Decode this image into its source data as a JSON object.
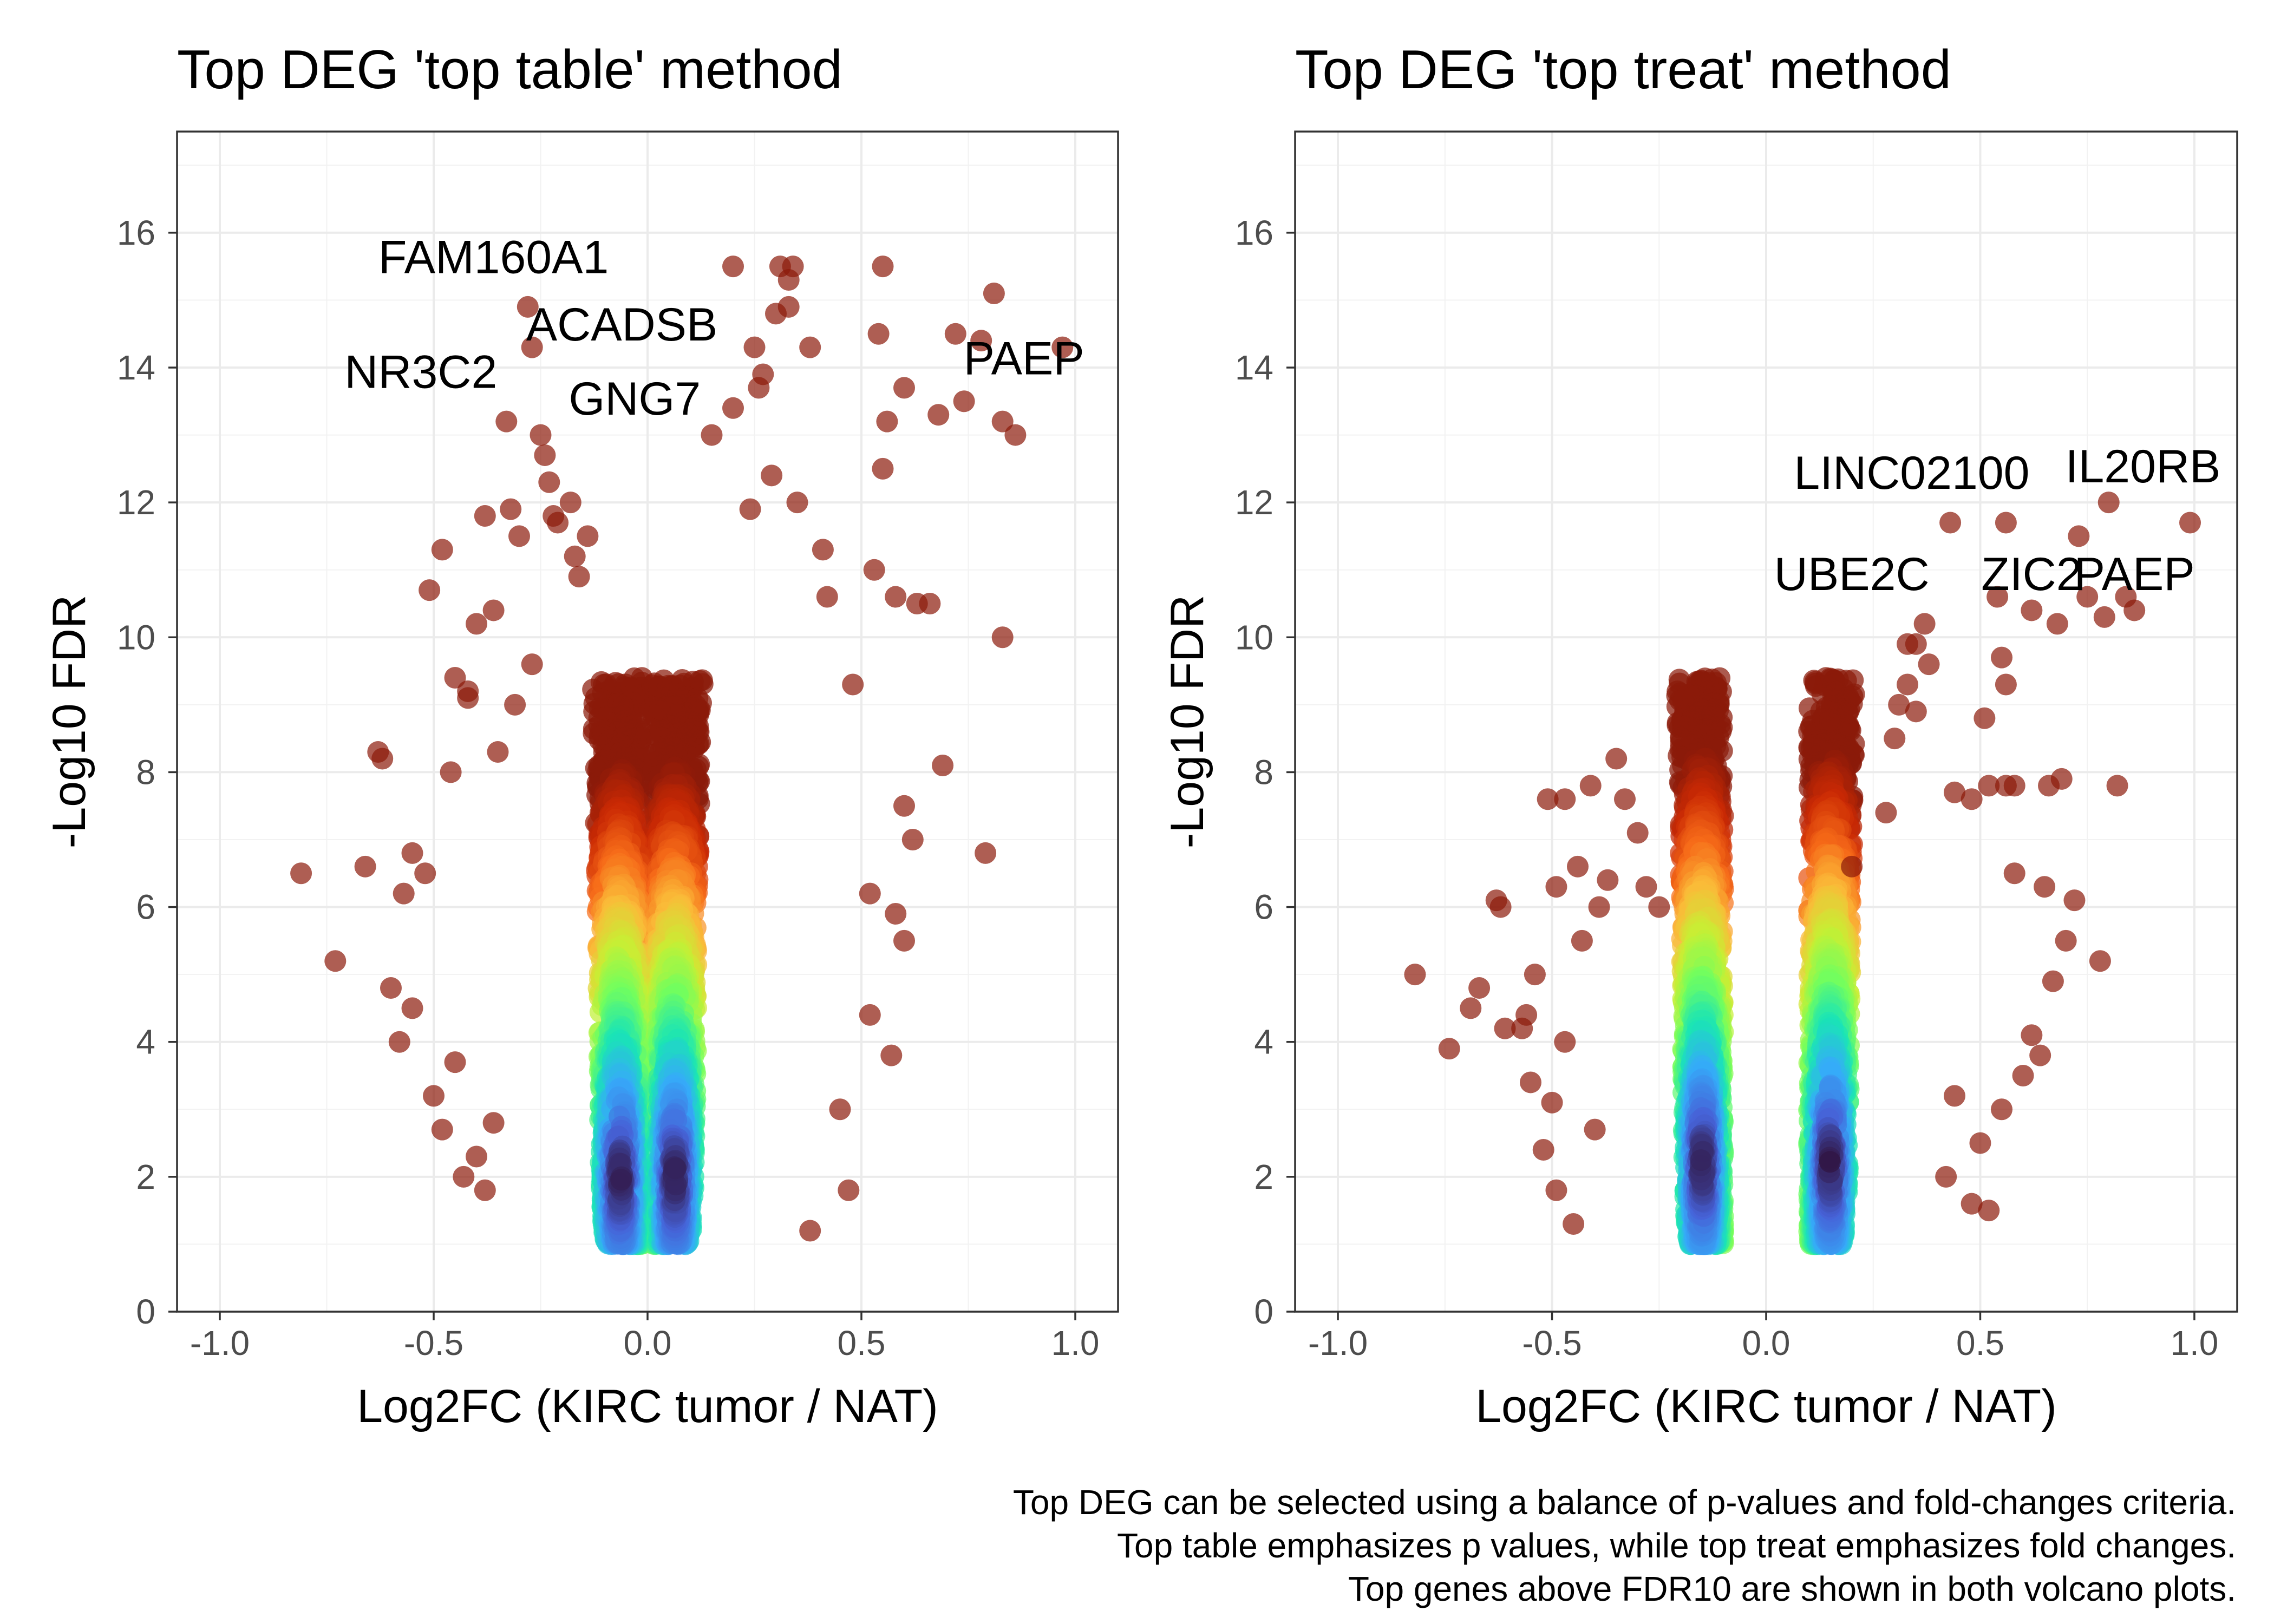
{
  "caption": [
    "Top DEG can be selected using a balance of p-values and fold-changes criteria.",
    "Top table emphasizes p values, while top treat emphasizes fold changes.",
    "Top genes above FDR10 are shown in both volcano plots."
  ],
  "colors": {
    "high_significance": "#8b1a0a",
    "gradient": [
      "#30123b",
      "#4662d7",
      "#36aaf9",
      "#1ae4b6",
      "#72fe5e",
      "#c7ef34",
      "#fabb39",
      "#f66b19",
      "#ca2a04",
      "#8b1a0a"
    ]
  },
  "chart_data": [
    {
      "type": "scatter",
      "title": "Top DEG 'top table' method",
      "xlabel": "Log2FC (KIRC tumor / NAT)",
      "ylabel": "-Log10 FDR",
      "xlim": [
        -1.1,
        1.1
      ],
      "ylim": [
        0,
        17.5
      ],
      "xticks": [
        -1.0,
        -0.5,
        0.0,
        0.5,
        1.0
      ],
      "xtick_labels": [
        "-1.0",
        "-0.5",
        "0.0",
        "0.5",
        "1.0"
      ],
      "yticks": [
        0,
        2,
        4,
        6,
        8,
        10,
        12,
        14,
        16
      ],
      "ytick_labels": [
        "0",
        "2",
        "4",
        "6",
        "8",
        "10",
        "12",
        "14",
        "16"
      ],
      "grid": true,
      "density": {
        "x_center": 0.0,
        "x_gap": 0.01,
        "x_spread": 0.12,
        "y_min": 1.0,
        "y_peak": 2.0
      },
      "points": [
        [
          -0.81,
          6.5
        ],
        [
          -0.73,
          5.2
        ],
        [
          -0.66,
          6.6
        ],
        [
          -0.63,
          8.3
        ],
        [
          -0.62,
          8.2
        ],
        [
          -0.6,
          4.8
        ],
        [
          -0.57,
          6.2
        ],
        [
          -0.55,
          6.8
        ],
        [
          -0.52,
          6.5
        ],
        [
          -0.51,
          10.7
        ],
        [
          -0.48,
          11.3
        ],
        [
          -0.45,
          9.4
        ],
        [
          -0.42,
          9.2
        ],
        [
          -0.4,
          10.2
        ],
        [
          -0.38,
          11.8
        ],
        [
          -0.36,
          10.4
        ],
        [
          -0.33,
          13.2
        ],
        [
          -0.32,
          11.9
        ],
        [
          -0.3,
          11.5
        ],
        [
          -0.28,
          14.9
        ],
        [
          -0.27,
          14.3
        ],
        [
          -0.25,
          13.0
        ],
        [
          -0.24,
          12.7
        ],
        [
          -0.23,
          12.3
        ],
        [
          -0.22,
          11.8
        ],
        [
          -0.21,
          11.7
        ],
        [
          -0.18,
          12.0
        ],
        [
          -0.17,
          11.2
        ],
        [
          -0.14,
          11.5
        ],
        [
          -0.16,
          10.9
        ],
        [
          -0.42,
          9.1
        ],
        [
          -0.46,
          8.0
        ],
        [
          -0.5,
          3.2
        ],
        [
          -0.48,
          2.7
        ],
        [
          -0.43,
          2.0
        ],
        [
          -0.38,
          1.8
        ],
        [
          -0.55,
          4.5
        ],
        [
          -0.35,
          8.3
        ],
        [
          -0.31,
          9.0
        ],
        [
          -0.45,
          3.7
        ],
        [
          -0.4,
          2.3
        ],
        [
          -0.58,
          4.0
        ],
        [
          -0.36,
          2.8
        ],
        [
          -0.27,
          9.6
        ],
        [
          0.2,
          15.5
        ],
        [
          0.31,
          15.5
        ],
        [
          0.34,
          15.5
        ],
        [
          0.33,
          15.3
        ],
        [
          0.55,
          15.5
        ],
        [
          0.81,
          15.1
        ],
        [
          0.78,
          14.4
        ],
        [
          0.72,
          14.5
        ],
        [
          0.54,
          14.5
        ],
        [
          0.6,
          13.7
        ],
        [
          0.68,
          13.3
        ],
        [
          0.74,
          13.5
        ],
        [
          0.83,
          13.2
        ],
        [
          0.86,
          13.0
        ],
        [
          0.97,
          14.3
        ],
        [
          0.25,
          14.3
        ],
        [
          0.3,
          14.8
        ],
        [
          0.33,
          14.9
        ],
        [
          0.38,
          14.3
        ],
        [
          0.27,
          13.9
        ],
        [
          0.26,
          13.7
        ],
        [
          0.2,
          13.4
        ],
        [
          0.15,
          13.0
        ],
        [
          0.56,
          13.2
        ],
        [
          0.55,
          12.5
        ],
        [
          0.41,
          11.3
        ],
        [
          0.53,
          11.0
        ],
        [
          0.58,
          10.6
        ],
        [
          0.63,
          10.5
        ],
        [
          0.66,
          10.5
        ],
        [
          0.83,
          10.0
        ],
        [
          0.48,
          9.3
        ],
        [
          0.69,
          8.1
        ],
        [
          0.62,
          7.0
        ],
        [
          0.79,
          6.8
        ],
        [
          0.6,
          5.5
        ],
        [
          0.52,
          4.4
        ],
        [
          0.57,
          3.8
        ],
        [
          0.47,
          1.8
        ],
        [
          0.38,
          1.2
        ],
        [
          0.52,
          6.2
        ],
        [
          0.6,
          7.5
        ],
        [
          0.42,
          10.6
        ],
        [
          0.35,
          12.0
        ],
        [
          0.29,
          12.4
        ],
        [
          0.24,
          11.9
        ],
        [
          0.45,
          3.0
        ],
        [
          0.58,
          5.9
        ]
      ],
      "annotations": [
        {
          "label": "FAM160A1",
          "x": -0.36,
          "y": 15.4
        },
        {
          "label": "ACADSB",
          "x": -0.06,
          "y": 14.4
        },
        {
          "label": "NR3C2",
          "x": -0.53,
          "y": 13.7
        },
        {
          "label": "GNG7",
          "x": -0.03,
          "y": 13.3
        },
        {
          "label": "PAEP",
          "x": 0.88,
          "y": 13.9
        }
      ]
    },
    {
      "type": "scatter",
      "title": "Top DEG 'top treat' method",
      "xlabel": "Log2FC (KIRC tumor / NAT)",
      "ylabel": "-Log10 FDR",
      "xlim": [
        -1.1,
        1.1
      ],
      "ylim": [
        0,
        17.5
      ],
      "xticks": [
        -1.0,
        -0.5,
        0.0,
        0.5,
        1.0
      ],
      "xtick_labels": [
        "-1.0",
        "-0.5",
        "0.0",
        "0.5",
        "1.0"
      ],
      "yticks": [
        0,
        2,
        4,
        6,
        8,
        10,
        12,
        14,
        16
      ],
      "ytick_labels": [
        "0",
        "2",
        "4",
        "6",
        "8",
        "10",
        "12",
        "14",
        "16"
      ],
      "grid": true,
      "density": {
        "x_center": 0.0,
        "x_gap": 0.1,
        "x_spread": 0.11,
        "y_min": 1.0,
        "y_peak": 2.2
      },
      "points": [
        [
          -0.82,
          5.0
        ],
        [
          -0.74,
          3.9
        ],
        [
          -0.69,
          4.5
        ],
        [
          -0.67,
          4.8
        ],
        [
          -0.63,
          6.1
        ],
        [
          -0.62,
          6.0
        ],
        [
          -0.61,
          4.2
        ],
        [
          -0.57,
          4.2
        ],
        [
          -0.56,
          4.4
        ],
        [
          -0.54,
          5.0
        ],
        [
          -0.51,
          7.6
        ],
        [
          -0.49,
          6.3
        ],
        [
          -0.47,
          7.6
        ],
        [
          -0.41,
          7.8
        ],
        [
          -0.39,
          6.0
        ],
        [
          -0.35,
          8.2
        ],
        [
          -0.33,
          7.6
        ],
        [
          -0.3,
          7.1
        ],
        [
          -0.37,
          6.4
        ],
        [
          -0.43,
          5.5
        ],
        [
          -0.5,
          3.1
        ],
        [
          -0.52,
          2.4
        ],
        [
          -0.49,
          1.8
        ],
        [
          -0.45,
          1.3
        ],
        [
          -0.4,
          2.7
        ],
        [
          -0.47,
          4.0
        ],
        [
          -0.55,
          3.4
        ],
        [
          -0.28,
          6.3
        ],
        [
          -0.25,
          6.0
        ],
        [
          -0.44,
          6.6
        ],
        [
          0.43,
          11.7
        ],
        [
          0.56,
          11.7
        ],
        [
          0.73,
          11.5
        ],
        [
          0.8,
          12.0
        ],
        [
          0.99,
          11.7
        ],
        [
          0.37,
          10.2
        ],
        [
          0.33,
          9.9
        ],
        [
          0.35,
          9.9
        ],
        [
          0.38,
          9.6
        ],
        [
          0.33,
          9.3
        ],
        [
          0.31,
          9.0
        ],
        [
          0.35,
          8.9
        ],
        [
          0.54,
          10.6
        ],
        [
          0.62,
          10.4
        ],
        [
          0.68,
          10.2
        ],
        [
          0.75,
          10.6
        ],
        [
          0.79,
          10.3
        ],
        [
          0.84,
          10.6
        ],
        [
          0.86,
          10.4
        ],
        [
          0.55,
          9.7
        ],
        [
          0.56,
          9.3
        ],
        [
          0.51,
          8.8
        ],
        [
          0.52,
          7.8
        ],
        [
          0.56,
          7.8
        ],
        [
          0.58,
          7.8
        ],
        [
          0.66,
          7.8
        ],
        [
          0.82,
          7.8
        ],
        [
          0.69,
          7.9
        ],
        [
          0.3,
          8.5
        ],
        [
          0.28,
          7.4
        ],
        [
          0.44,
          7.7
        ],
        [
          0.48,
          7.6
        ],
        [
          0.2,
          6.6
        ],
        [
          0.58,
          6.5
        ],
        [
          0.65,
          6.3
        ],
        [
          0.72,
          6.1
        ],
        [
          0.78,
          5.2
        ],
        [
          0.7,
          5.5
        ],
        [
          0.62,
          4.1
        ],
        [
          0.6,
          3.5
        ],
        [
          0.55,
          3.0
        ],
        [
          0.5,
          2.5
        ],
        [
          0.48,
          1.6
        ],
        [
          0.52,
          1.5
        ],
        [
          0.44,
          3.2
        ],
        [
          0.42,
          2.0
        ],
        [
          0.64,
          3.8
        ],
        [
          0.67,
          4.9
        ]
      ],
      "annotations": [
        {
          "label": "LINC02100",
          "x": 0.34,
          "y": 12.2
        },
        {
          "label": "IL20RB",
          "x": 0.88,
          "y": 12.3
        },
        {
          "label": "UBE2C",
          "x": 0.2,
          "y": 10.7
        },
        {
          "label": "ZIC2",
          "x": 0.62,
          "y": 10.7
        },
        {
          "label": "PAEP",
          "x": 0.86,
          "y": 10.7
        }
      ]
    }
  ]
}
